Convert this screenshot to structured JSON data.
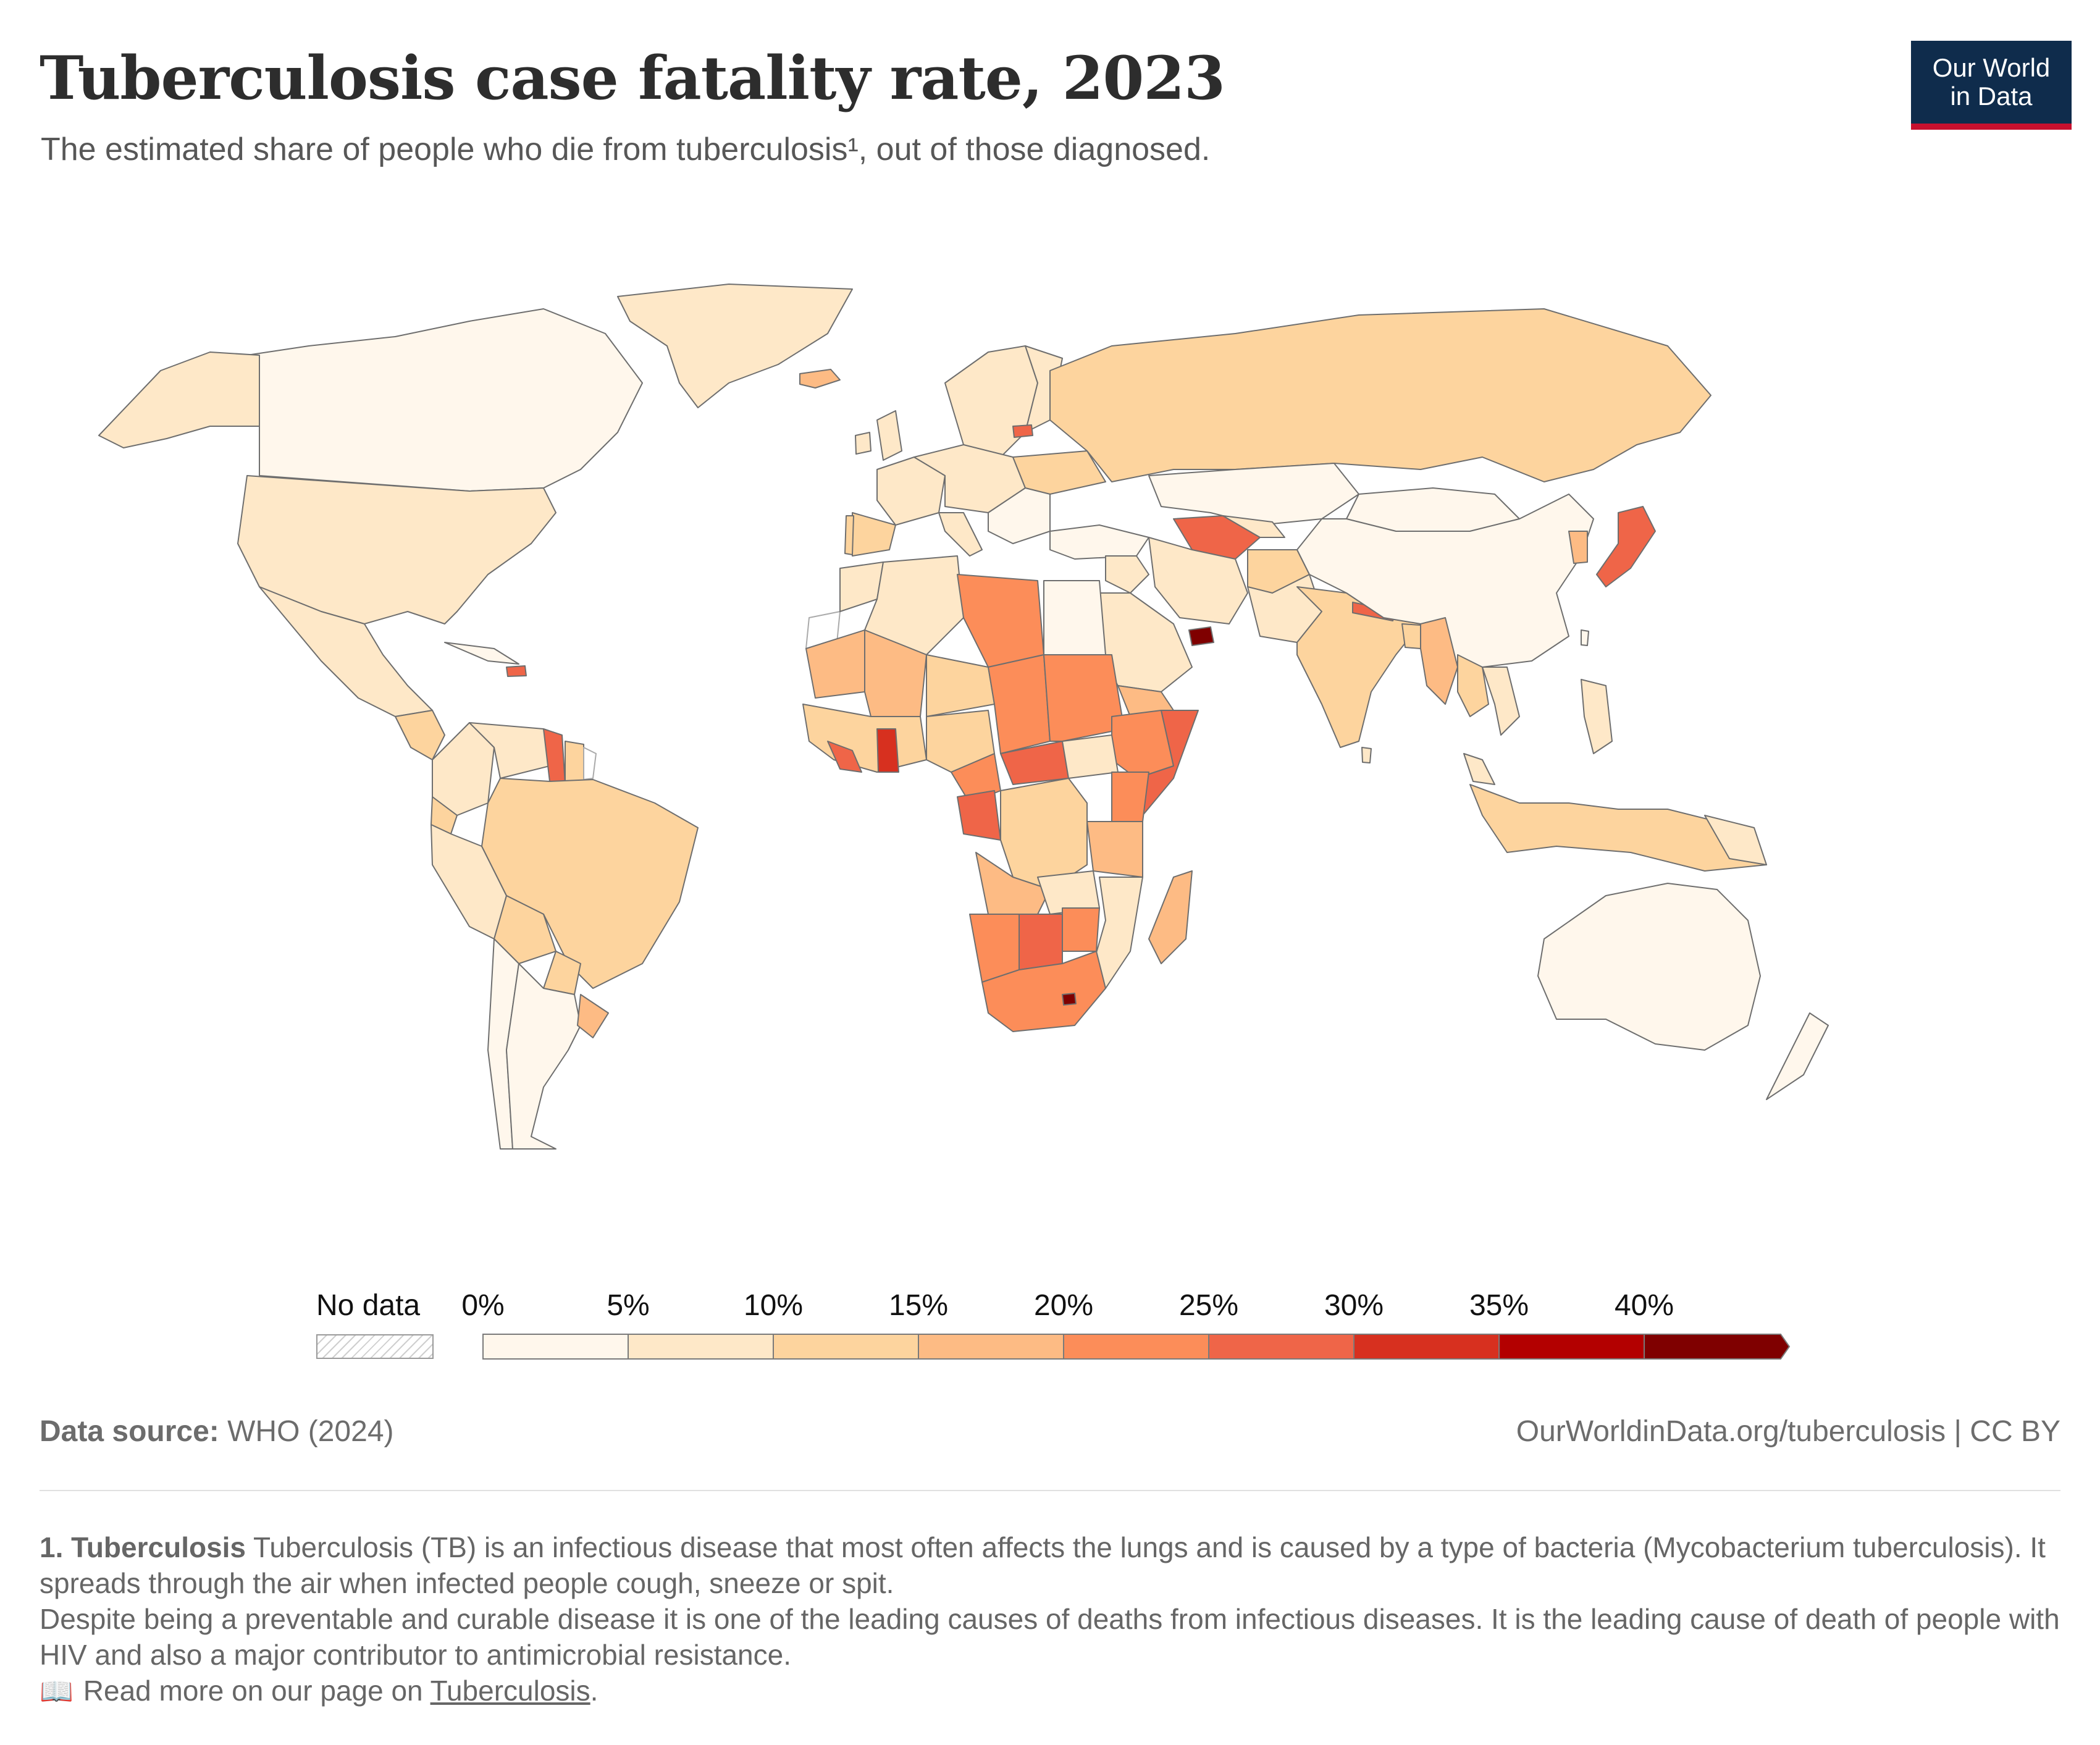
{
  "header": {
    "title": "Tuberculosis case fatality rate, 2023",
    "subtitle": "The estimated share of people who die from tuberculosis¹, out of those diagnosed."
  },
  "logo": {
    "line1": "Our World",
    "line2": "in Data"
  },
  "legend": {
    "no_data_label": "No data",
    "ticks": [
      "0%",
      "5%",
      "10%",
      "15%",
      "20%",
      "25%",
      "30%",
      "35%",
      "40%"
    ],
    "bins": [
      {
        "from": 0,
        "to": 5,
        "color": "#fff7ec"
      },
      {
        "from": 5,
        "to": 10,
        "color": "#fee8c8"
      },
      {
        "from": 10,
        "to": 15,
        "color": "#fdd49e"
      },
      {
        "from": 15,
        "to": 20,
        "color": "#fdbb84"
      },
      {
        "from": 20,
        "to": 25,
        "color": "#fc8d59"
      },
      {
        "from": 25,
        "to": 30,
        "color": "#ef6548"
      },
      {
        "from": 30,
        "to": 35,
        "color": "#d7301f"
      },
      {
        "from": 35,
        "to": 40,
        "color": "#b30000"
      },
      {
        "from": 40,
        "to": null,
        "color": "#7f0000"
      }
    ]
  },
  "footer": {
    "source_label": "Data source:",
    "source_value": "WHO (2024)",
    "url_license": "OurWorldinData.org/tuberculosis | CC BY"
  },
  "notes": {
    "term": "1. Tuberculosis",
    "definition": "Tuberculosis (TB) is an infectious disease that most often affects the lungs and is caused by a type of bacteria (Mycobacterium tuberculosis). It spreads through the air when infected people cough, sneeze or spit.",
    "paragraph2": "Despite being a preventable and curable disease it is one of the leading causes of deaths from infectious diseases. It is the leading cause of death of people with HIV and also a major contributor to antimicrobial resistance.",
    "read_more_prefix": "Read more on our page on",
    "read_more_link": "Tuberculosis",
    "read_more_suffix": "."
  }
}
